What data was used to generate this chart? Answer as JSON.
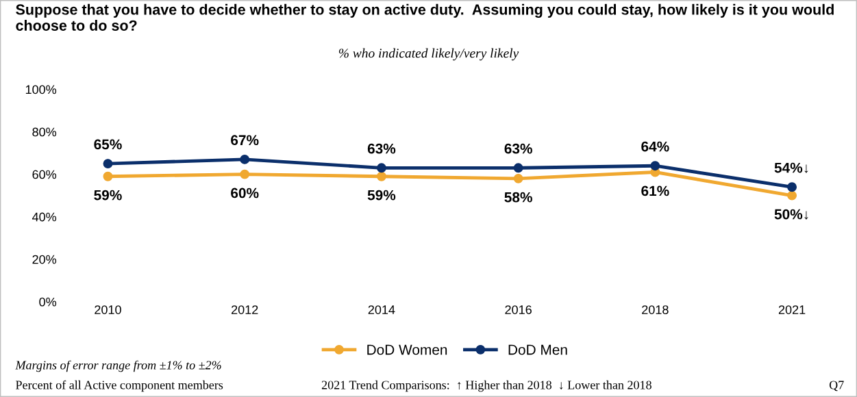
{
  "chart_data": {
    "type": "line",
    "title": "Suppose that you have to decide whether to stay on active duty.  Assuming you could stay, how likely is it you would choose to do so?",
    "subtitle": "% who indicated likely/very likely",
    "categories": [
      "2010",
      "2012",
      "2014",
      "2016",
      "2018",
      "2021"
    ],
    "series": [
      {
        "name": "DoD Women",
        "color": "#f0a830",
        "values": [
          59,
          60,
          59,
          58,
          61,
          50
        ],
        "value_labels": [
          "59%",
          "60%",
          "59%",
          "58%",
          "61%",
          "50%↓"
        ]
      },
      {
        "name": "DoD Men",
        "color": "#0b2f6b",
        "values": [
          65,
          67,
          63,
          63,
          64,
          54
        ],
        "value_labels": [
          "65%",
          "67%",
          "63%",
          "63%",
          "64%",
          "54%↓"
        ]
      }
    ],
    "ylim": [
      0,
      100
    ],
    "yticks": [
      {
        "value": 0,
        "label": "0%"
      },
      {
        "value": 20,
        "label": "20%"
      },
      {
        "value": 40,
        "label": "40%"
      },
      {
        "value": 60,
        "label": "60%"
      },
      {
        "value": 80,
        "label": "80%"
      },
      {
        "value": 100,
        "label": "100%"
      }
    ],
    "marker": "circle",
    "line_style": "solid",
    "legend": "bottom",
    "annotations": [
      "Margins of error range from ±1% to ±2%",
      "Percent of all Active component members",
      "2021 Trend Comparisons:  ↑ Higher than 2018  ↓ Lower than 2018",
      "Q7"
    ]
  }
}
